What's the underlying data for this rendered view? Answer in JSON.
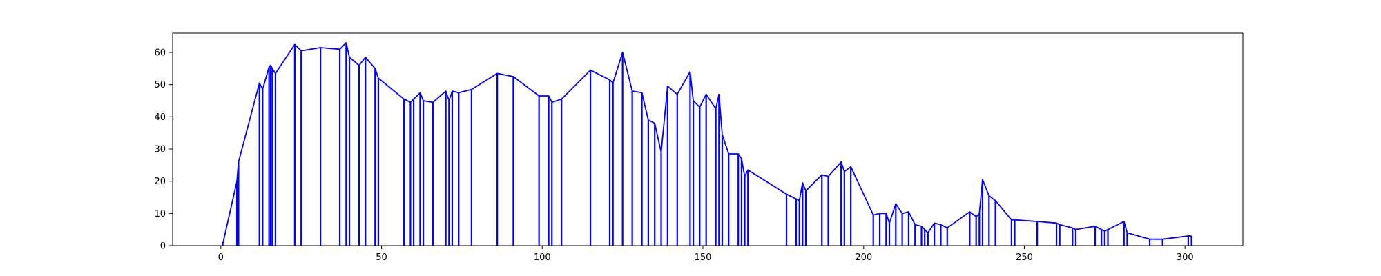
{
  "chart_data": {
    "type": "line",
    "title": "",
    "xlabel": "",
    "ylabel": "",
    "xlim": [
      -15,
      318
    ],
    "ylim": [
      0,
      66
    ],
    "xticks": [
      0,
      50,
      100,
      150,
      200,
      250,
      300
    ],
    "yticks": [
      0,
      10,
      20,
      30,
      40,
      50,
      60
    ],
    "grid": false,
    "legend": "none",
    "series_color": "#0000ff",
    "drop_lines": true,
    "x": [
      0.5,
      0.6,
      5,
      5.5,
      12,
      13,
      15,
      15.5,
      16,
      17,
      23,
      25,
      31,
      37,
      39,
      40,
      43,
      45,
      48,
      49,
      57,
      59,
      60,
      62,
      63,
      66,
      70,
      71,
      72,
      74,
      78,
      86,
      91,
      99,
      102,
      103,
      106,
      115,
      121,
      122,
      125,
      128,
      131,
      133,
      135,
      137,
      139,
      142,
      146,
      147,
      149,
      151,
      154,
      155,
      156,
      158,
      161,
      162,
      163,
      164,
      176,
      179,
      180,
      181,
      182,
      187,
      189,
      193,
      194,
      196,
      203,
      205,
      207,
      208,
      210,
      212,
      214,
      216,
      218,
      219,
      220,
      222,
      224,
      226,
      233,
      235,
      236,
      237,
      239,
      241,
      246,
      247,
      254,
      260,
      261,
      265,
      266,
      272,
      274,
      275,
      276,
      281,
      282,
      289,
      293,
      301,
      302
    ],
    "y": [
      1.2,
      0.5,
      20,
      26,
      50.5,
      48.5,
      55.5,
      56,
      55,
      53.5,
      62.5,
      60.5,
      61.5,
      61,
      63,
      58.5,
      56,
      58.5,
      55,
      52,
      45.5,
      44.5,
      45.5,
      47.5,
      45,
      44.5,
      48,
      45,
      48,
      47.5,
      48.5,
      53.5,
      52.5,
      46.5,
      46.5,
      44.5,
      45.5,
      54.5,
      51.5,
      50.5,
      60,
      48,
      47.5,
      39,
      38,
      29,
      49.5,
      47,
      54,
      45,
      43,
      47,
      42.5,
      47,
      34.5,
      28.5,
      28.5,
      27,
      21.5,
      23.5,
      16,
      14.5,
      14,
      19.5,
      17,
      22,
      21.5,
      26,
      23,
      24.5,
      9.5,
      10,
      10,
      7,
      13,
      10,
      10.5,
      6.5,
      6,
      5,
      4,
      7,
      6.5,
      5.5,
      10.5,
      9,
      10,
      20.5,
      15.5,
      14,
      8,
      8,
      7.5,
      7,
      6.5,
      5.5,
      5,
      6,
      5,
      4.5,
      5,
      7.5,
      4,
      2,
      2,
      3,
      3
    ]
  }
}
